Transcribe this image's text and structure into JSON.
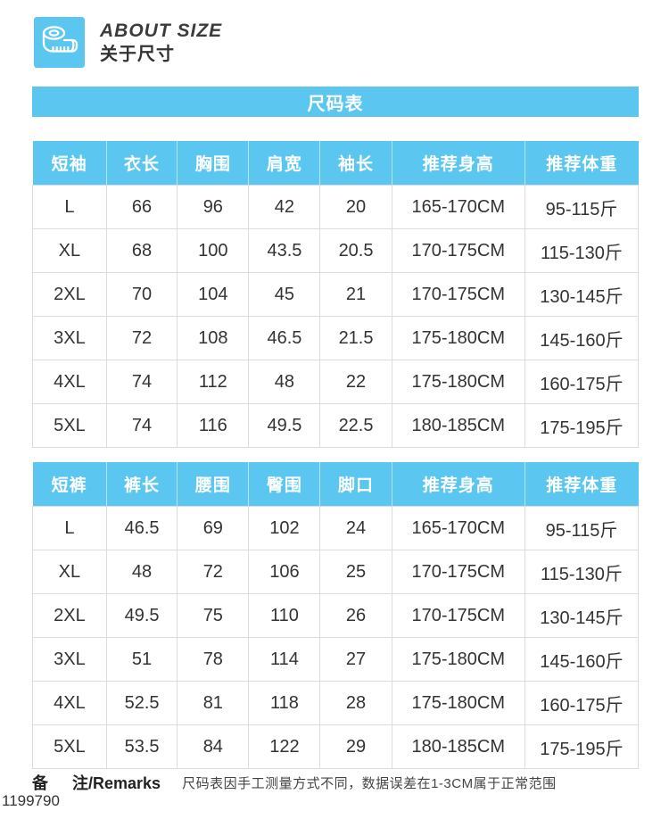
{
  "accent": "#5bc7f1",
  "header": {
    "title_en": "ABOUT SIZE",
    "title_zh": "关于尺寸",
    "icon": "measuring-tape-icon"
  },
  "banner": {
    "label": "尺码表"
  },
  "tables": [
    {
      "name": "short-sleeve-size-table",
      "headers": [
        "短袖",
        "衣长",
        "胸围",
        "肩宽",
        "袖长",
        "推荐身高",
        "推荐体重"
      ],
      "rows": [
        [
          "L",
          "66",
          "96",
          "42",
          "20",
          "165-170CM",
          "95-115斤"
        ],
        [
          "XL",
          "68",
          "100",
          "43.5",
          "20.5",
          "170-175CM",
          "115-130斤"
        ],
        [
          "2XL",
          "70",
          "104",
          "45",
          "21",
          "170-175CM",
          "130-145斤"
        ],
        [
          "3XL",
          "72",
          "108",
          "46.5",
          "21.5",
          "175-180CM",
          "145-160斤"
        ],
        [
          "4XL",
          "74",
          "112",
          "48",
          "22",
          "175-180CM",
          "160-175斤"
        ],
        [
          "5XL",
          "74",
          "116",
          "49.5",
          "22.5",
          "180-185CM",
          "175-195斤"
        ]
      ]
    },
    {
      "name": "shorts-size-table",
      "headers": [
        "短裤",
        "裤长",
        "腰围",
        "臀围",
        "脚口",
        "推荐身高",
        "推荐体重"
      ],
      "rows": [
        [
          "L",
          "46.5",
          "69",
          "102",
          "24",
          "165-170CM",
          "95-115斤"
        ],
        [
          "XL",
          "48",
          "72",
          "106",
          "25",
          "170-175CM",
          "115-130斤"
        ],
        [
          "2XL",
          "49.5",
          "75",
          "110",
          "26",
          "170-175CM",
          "130-145斤"
        ],
        [
          "3XL",
          "51",
          "78",
          "114",
          "27",
          "175-180CM",
          "145-160斤"
        ],
        [
          "4XL",
          "52.5",
          "81",
          "118",
          "28",
          "175-180CM",
          "160-175斤"
        ],
        [
          "5XL",
          "53.5",
          "84",
          "122",
          "29",
          "180-185CM",
          "175-195斤"
        ]
      ]
    }
  ],
  "footer": {
    "label_bei": "备",
    "label_zhu": "注/Remarks",
    "note": "尺码表因手工测量方式不同，数据误差在1-3CM属于正常范围",
    "code": "1199790"
  }
}
